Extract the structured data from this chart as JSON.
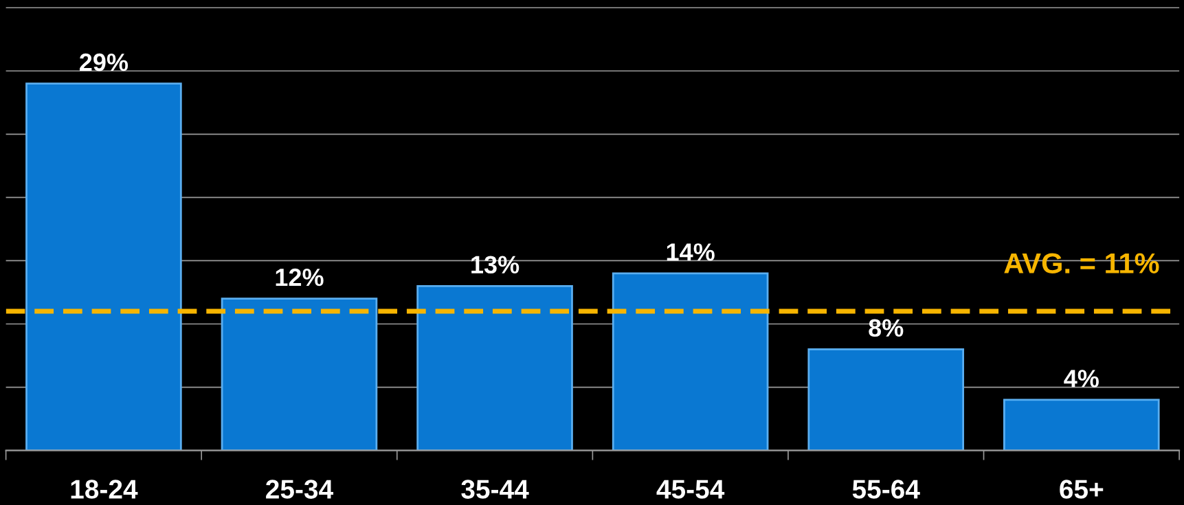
{
  "chart_data": {
    "type": "bar",
    "categories": [
      "18-24",
      "25-34",
      "35-44",
      "45-54",
      "55-64",
      "65+"
    ],
    "values": [
      29,
      12,
      13,
      14,
      8,
      4
    ],
    "value_labels": [
      "29%",
      "12%",
      "13%",
      "14%",
      "8%",
      "4%"
    ],
    "color": "#0a78d2",
    "tick_labels": "x",
    "grid": "y",
    "ref_lines": [
      {
        "axis": "y",
        "value": 11,
        "label": "AVG. = 11%",
        "color": "#f7b500",
        "line_style": "dashed"
      }
    ]
  }
}
